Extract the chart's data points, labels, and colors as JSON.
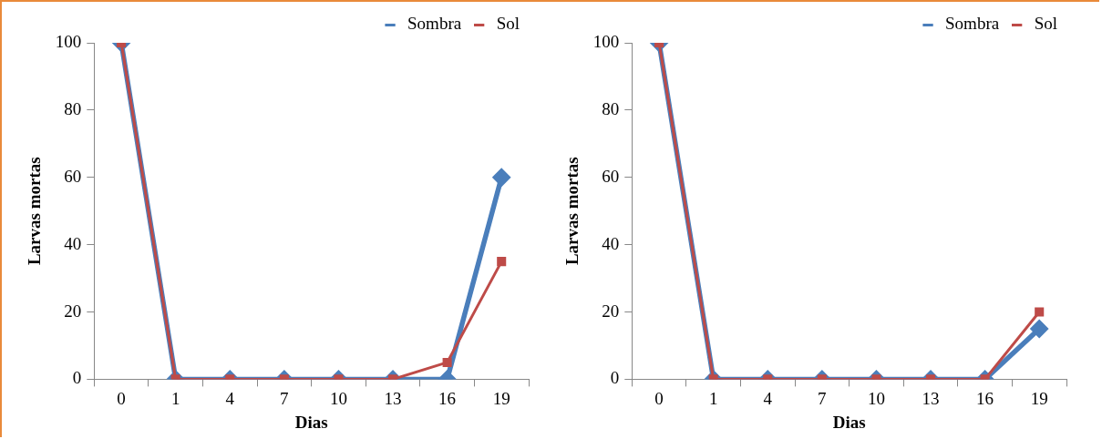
{
  "chart_data": [
    {
      "type": "line",
      "xlabel": "Dias",
      "ylabel": "Larvas mortas",
      "categories": [
        "0",
        "1",
        "4",
        "7",
        "10",
        "13",
        "16",
        "19"
      ],
      "ylim": [
        0,
        100
      ],
      "yticks": [
        0,
        20,
        40,
        60,
        80,
        100
      ],
      "grid": false,
      "legend": "top right",
      "series": [
        {
          "name": "Sombra",
          "color": "#4a7ebb",
          "marker": "diamond",
          "values": [
            100,
            0,
            0,
            0,
            0,
            0,
            0,
            60
          ]
        },
        {
          "name": "Sol",
          "color": "#be4b48",
          "marker": "square",
          "values": [
            100,
            0,
            0,
            0,
            0,
            0,
            5,
            35
          ]
        }
      ]
    },
    {
      "type": "line",
      "xlabel": "Dias",
      "ylabel": "Larvas mortas",
      "categories": [
        "0",
        "1",
        "4",
        "7",
        "10",
        "13",
        "16",
        "19"
      ],
      "ylim": [
        0,
        100
      ],
      "yticks": [
        0,
        20,
        40,
        60,
        80,
        100
      ],
      "grid": false,
      "legend": "top right",
      "series": [
        {
          "name": "Sombra",
          "color": "#4a7ebb",
          "marker": "diamond",
          "values": [
            100,
            0,
            0,
            0,
            0,
            0,
            0,
            15
          ]
        },
        {
          "name": "Sol",
          "color": "#be4b48",
          "marker": "square",
          "values": [
            100,
            0,
            0,
            0,
            0,
            0,
            0,
            20
          ]
        }
      ]
    }
  ]
}
